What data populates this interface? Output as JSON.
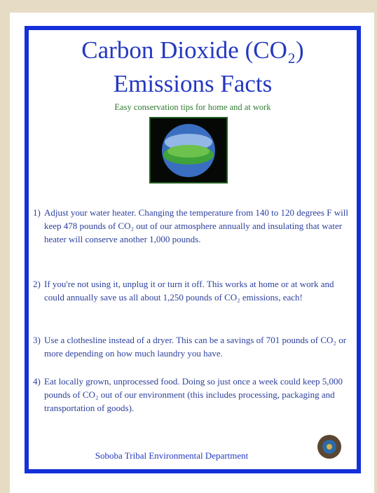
{
  "header": {
    "title_lines": [
      "Carbon Dioxide (CO₂)",
      "Emissions Facts"
    ],
    "subtitle": "Easy conservation tips for home and at work"
  },
  "items": [
    {
      "number": "1)",
      "text": "Adjust your water heater. Changing the temperature from 140 to 120 degrees F will keep 478 pounds of CO₂ out of our atmosphere annually and insulating that water heater will conserve another 1,000 pounds."
    },
    {
      "number": "2)",
      "text": "If you're not using it, unplug it or turn it off. This works at home or at work and could annually save us all about 1,250 pounds of CO₂ emissions, each!"
    },
    {
      "number": "3)",
      "text": "Use a clothesline instead of a dryer. This can be a savings of 701 pounds of CO₂ or more depending on how much laundry you have."
    },
    {
      "number": "4)",
      "text": "Eat locally grown, unprocessed food. Doing so just once a week could keep 5,000 pounds of CO₂ out of our environment (this includes processing, packaging and transportation of goods)."
    }
  ],
  "footer": {
    "text": "Soboba Tribal Environmental Department"
  }
}
